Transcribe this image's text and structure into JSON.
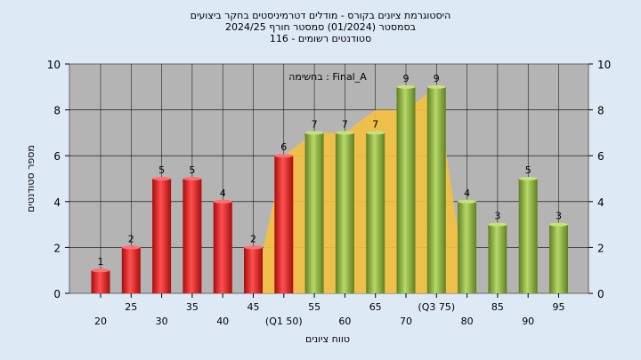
{
  "title_lines": [
    "היסטוגרמת ציונים בקורס - מודלים דטרמיניסטים בחקר ביצועים",
    "בסמסטר  (01/2024)  סמסטר חורף 2024/25",
    "סטודנטים רשומים - 116"
  ],
  "chart_data": {
    "type": "bar",
    "title": "היסטוגרמת ציונים בקורס - מודלים דטרמיניסטים בחקר ביצועים",
    "subtitle": "בסמסטר  (01/2024)  סמסטר חורף 2024/25",
    "note": "סטודנטים רשומים - 116",
    "annotation": "בחשימה : Final_A",
    "xlabel": "טווח ציונים",
    "ylabel": "מספר סטודנטים",
    "ylim": [
      0,
      10
    ],
    "yticks": [
      0,
      2,
      4,
      6,
      8,
      10
    ],
    "grid": true,
    "categories": [
      "20",
      "25",
      "30",
      "35",
      "40",
      "45",
      "50",
      "55",
      "60",
      "65",
      "70",
      "75",
      "80",
      "85",
      "90",
      "95"
    ],
    "category_labels": [
      "20",
      "25",
      "30",
      "35",
      "40",
      "45",
      "(Q1 50)",
      "55",
      "60",
      "65",
      "70",
      "(Q3 75)",
      "80",
      "85",
      "90",
      "95"
    ],
    "values": [
      1,
      2,
      5,
      5,
      4,
      2,
      6,
      7,
      7,
      7,
      9,
      9,
      4,
      3,
      5,
      3
    ],
    "bar_colors": [
      "#d92020",
      "#d92020",
      "#d92020",
      "#d92020",
      "#d92020",
      "#d92020",
      "#d92020",
      "#8cb040",
      "#8cb040",
      "#8cb040",
      "#8cb040",
      "#8cb040",
      "#8cb040",
      "#8cb040",
      "#8cb040",
      "#8cb040"
    ],
    "background_area": {
      "upper": [
        0,
        0,
        0,
        0,
        0,
        0,
        6,
        7,
        7,
        8,
        8,
        9,
        0,
        0,
        0,
        0
      ],
      "lower": [
        0,
        0,
        0,
        0,
        0,
        0,
        0,
        0,
        0,
        0,
        0,
        0,
        0,
        0,
        0,
        0
      ],
      "color": "#f5c040"
    }
  },
  "colors": {
    "plot_background": "#b4b4b4",
    "page_background": "#dde9f5",
    "low_bar": "#d92020",
    "high_bar": "#8cb040",
    "area": "#f5c040"
  }
}
